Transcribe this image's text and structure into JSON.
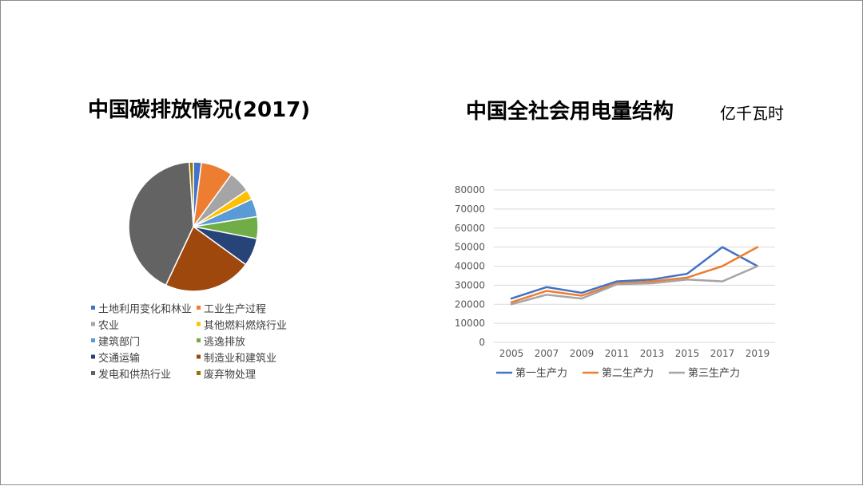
{
  "titles": {
    "pie": "中国碳排放情况(2017)",
    "line": "中国全社会用电量结构",
    "unit": "亿千瓦时"
  },
  "chart_data": [
    {
      "type": "pie",
      "title": "中国碳排放情况(2017)",
      "legend_position": "bottom",
      "slices": [
        {
          "label": "土地利用变化和林业",
          "value": 2.0,
          "color": "#4472c4"
        },
        {
          "label": "工业生产过程",
          "value": 8.0,
          "color": "#ed7d31"
        },
        {
          "label": "农业",
          "value": 5.5,
          "color": "#a5a5a5"
        },
        {
          "label": "其他燃料燃烧行业",
          "value": 2.5,
          "color": "#ffc000"
        },
        {
          "label": "建筑部门",
          "value": 4.5,
          "color": "#5b9bd5"
        },
        {
          "label": "逃逸排放",
          "value": 5.5,
          "color": "#70ad47"
        },
        {
          "label": "交通运输",
          "value": 7.0,
          "color": "#264478"
        },
        {
          "label": "制造业和建筑业",
          "value": 22.0,
          "color": "#9e480e"
        },
        {
          "label": "发电和供热行业",
          "value": 42.0,
          "color": "#636363"
        },
        {
          "label": "废弃物处理",
          "value": 1.0,
          "color": "#997300"
        }
      ]
    },
    {
      "type": "line",
      "title": "中国全社会用电量结构",
      "unit": "亿千瓦时",
      "x": [
        "2005",
        "2007",
        "2009",
        "2011",
        "2013",
        "2015",
        "2017",
        "2019"
      ],
      "ylim": [
        0,
        80000
      ],
      "yticks": [
        0,
        10000,
        20000,
        30000,
        40000,
        50000,
        60000,
        70000,
        80000
      ],
      "grid": true,
      "legend_position": "bottom",
      "series": [
        {
          "name": "第一生产力",
          "color": "#4472c4",
          "values": [
            23000,
            29000,
            26000,
            32000,
            33000,
            36000,
            50000,
            40000
          ]
        },
        {
          "name": "第二生产力",
          "color": "#ed7d31",
          "values": [
            21000,
            27000,
            24500,
            31000,
            32000,
            34000,
            40000,
            50000
          ]
        },
        {
          "name": "第三生产力",
          "color": "#a5a5a5",
          "values": [
            20000,
            25000,
            23000,
            30500,
            31000,
            33000,
            32000,
            40000
          ]
        }
      ]
    }
  ]
}
